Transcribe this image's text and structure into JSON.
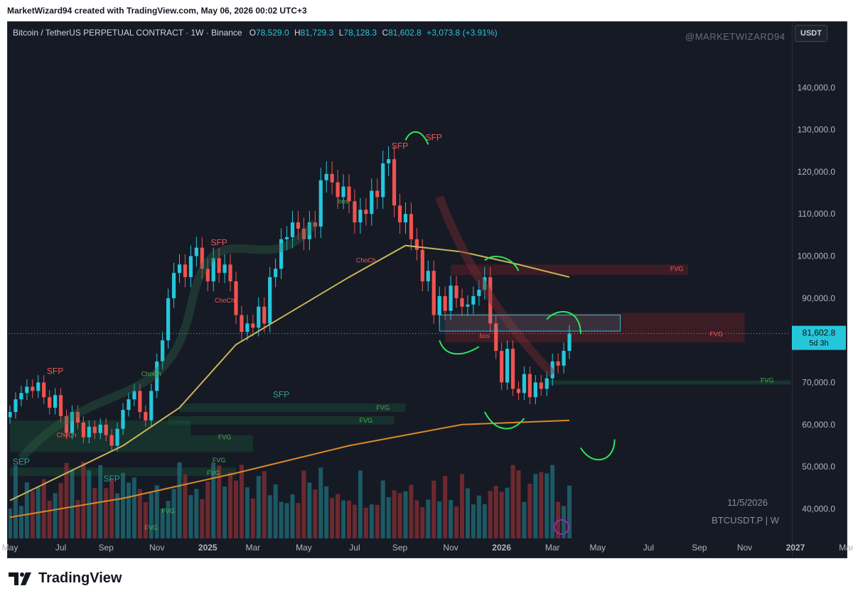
{
  "caption": "MarketWizard94 created with TradingView.com, May 06, 2026 00:02 UTC+3",
  "header": {
    "symbol": "Bitcoin / TetherUS PERPETUAL CONTRACT · 1W · Binance",
    "open_label": "O",
    "open": "78,529.0",
    "high_label": "H",
    "high": "81,729.3",
    "low_label": "L",
    "low": "78,128.3",
    "close_label": "C",
    "close": "81,602.8",
    "change": "+3,073.8 (+3.91%)"
  },
  "watermark_user": "@MARKETWIZARD94",
  "currency_button": "USDT",
  "corner_date": "11/5/2026",
  "corner_symbol": "BTCUSDT.P | W",
  "footer_brand": "TradingView",
  "colors": {
    "background": "#161a25",
    "up": "#26c6da",
    "down": "#ef5350",
    "ma_yellow": "#c9b458",
    "ma_orange": "#d98a28",
    "fvg_green": "#1b5e3a",
    "fvg_red": "#6b1f26",
    "drawing_green": "#2ee65c"
  },
  "chart_data": {
    "type": "candlestick",
    "title": "Bitcoin / TetherUS PERPETUAL CONTRACT · 1W · Binance",
    "xlabel": "",
    "ylabel": "",
    "ylim": [
      33000,
      151000
    ],
    "y_ticks": [
      "140,000.0",
      "130,000.0",
      "120,000.0",
      "110,000.0",
      "100,000.0",
      "90,000.0",
      "80,000.0",
      "70,000.0",
      "60,000.0",
      "50,000.0",
      "40,000.0"
    ],
    "y_tick_values": [
      140000,
      130000,
      120000,
      110000,
      100000,
      90000,
      80000,
      70000,
      60000,
      50000,
      40000
    ],
    "x_ticks": [
      "May",
      "Jul",
      "Sep",
      "Nov",
      "2025",
      "Mar",
      "May",
      "Jul",
      "Sep",
      "Nov",
      "2026",
      "Mar",
      "May",
      "Jul",
      "Sep",
      "Nov",
      "2027",
      "Mar"
    ],
    "x_tick_weeks": [
      0,
      9,
      17,
      26,
      35,
      43,
      52,
      61,
      69,
      78,
      87,
      96,
      104,
      113,
      122,
      130,
      139,
      148
    ],
    "x_bold_ticks": [
      "2025",
      "2026",
      "2027"
    ],
    "last_price": "81,602.8",
    "last_price_value": 81602.8,
    "countdown": "5d 3h",
    "grid": false,
    "weekly_closes": [
      63000,
      66000,
      67500,
      69000,
      68000,
      70000,
      66500,
      64000,
      67000,
      62000,
      58000,
      63000,
      60500,
      57000,
      59500,
      58000,
      60000,
      57500,
      55000,
      59000,
      63500,
      66000,
      68000,
      63000,
      61000,
      68000,
      75000,
      80000,
      90000,
      96000,
      98000,
      95000,
      100000,
      102000,
      97000,
      94000,
      99500,
      96000,
      98000,
      94000,
      86000,
      82000,
      84000,
      83000,
      88000,
      84000,
      95000,
      97000,
      104000,
      104500,
      108000,
      106500,
      104000,
      108000,
      107000,
      118000,
      119500,
      117500,
      114000,
      116500,
      113000,
      108000,
      111000,
      110000,
      115500,
      114000,
      122000,
      123000,
      112000,
      108000,
      110000,
      104000,
      101500,
      94000,
      96500,
      86000,
      90500,
      87000,
      93000,
      90000,
      88000,
      88500,
      90500,
      92000,
      95000,
      84000,
      77500,
      70000,
      78000,
      68500,
      67500,
      72000,
      66500,
      70000,
      68500,
      71000,
      75000,
      74000,
      77500,
      81602.8
    ],
    "moving_averages": [
      {
        "color": "yellow",
        "values_at": [
          [
            0,
            42000
          ],
          [
            20,
            55000
          ],
          [
            30,
            64000
          ],
          [
            40,
            79000
          ],
          [
            50,
            87000
          ],
          [
            60,
            95000
          ],
          [
            70,
            102500
          ],
          [
            80,
            101000
          ],
          [
            90,
            98000
          ],
          [
            99,
            95000
          ]
        ]
      },
      {
        "color": "orange",
        "values_at": [
          [
            0,
            38000
          ],
          [
            20,
            42500
          ],
          [
            40,
            48500
          ],
          [
            60,
            55000
          ],
          [
            80,
            60000
          ],
          [
            99,
            61000
          ]
        ]
      }
    ],
    "annotations": [
      {
        "text": "SFP",
        "week": 8,
        "price": 72000,
        "color": "red"
      },
      {
        "text": "SFP",
        "week": 37,
        "price": 102500,
        "color": "red"
      },
      {
        "text": "SFP",
        "week": 69,
        "price": 125500,
        "color": "red"
      },
      {
        "text": "SFP",
        "week": 75,
        "price": 127500,
        "color": "red"
      },
      {
        "text": "SFP",
        "week": 48,
        "price": 66500,
        "color": "teal"
      },
      {
        "text": "SEP",
        "week": 2,
        "price": 50500,
        "color": "teal"
      },
      {
        "text": "SFP",
        "week": 18,
        "price": 46500,
        "color": "teal"
      },
      {
        "text": "ChoCh",
        "week": 25,
        "price": 71500,
        "color": "green"
      },
      {
        "text": "ChoCh",
        "week": 10,
        "price": 57000,
        "color": "red"
      },
      {
        "text": "ChoCh",
        "week": 38,
        "price": 89000,
        "color": "red"
      },
      {
        "text": "ChoCh",
        "week": 63,
        "price": 98500,
        "color": "red"
      },
      {
        "text": "bos",
        "week": 59,
        "price": 112500,
        "color": "green"
      },
      {
        "text": "bos",
        "week": 84,
        "price": 80500,
        "color": "red"
      },
      {
        "text": "FVG",
        "week": 66,
        "price": 63500,
        "color": "green"
      },
      {
        "text": "FVG",
        "week": 63,
        "price": 60500,
        "color": "green"
      },
      {
        "text": "FVG",
        "week": 38,
        "price": 56500,
        "color": "green"
      },
      {
        "text": "FVG",
        "week": 37,
        "price": 51000,
        "color": "green"
      },
      {
        "text": "FVG",
        "week": 36,
        "price": 48000,
        "color": "green"
      },
      {
        "text": "FVG",
        "week": 28,
        "price": 39000,
        "color": "green"
      },
      {
        "text": "FVG",
        "week": 25,
        "price": 35000,
        "color": "green"
      },
      {
        "text": "FVG",
        "week": 118,
        "price": 96500,
        "color": "red"
      },
      {
        "text": "FVG",
        "week": 125,
        "price": 81000,
        "color": "red"
      },
      {
        "text": "FVG",
        "week": 134,
        "price": 70000,
        "color": "green"
      }
    ]
  }
}
